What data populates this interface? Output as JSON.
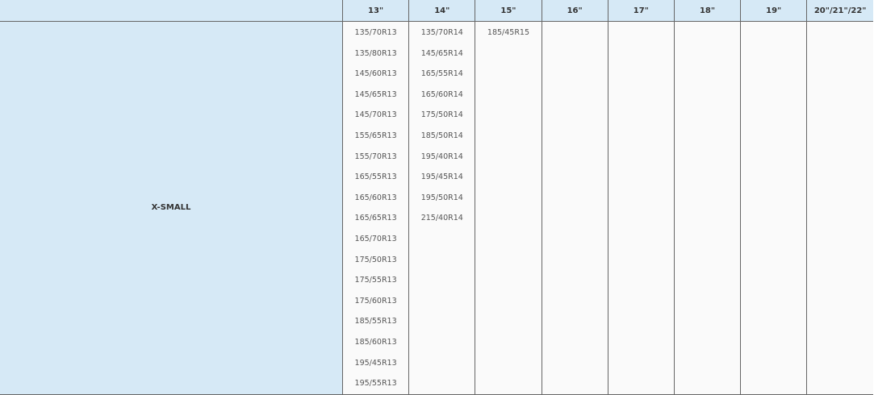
{
  "table": {
    "headers": [
      "",
      "13\"",
      "14\"",
      "15\"",
      "16\"",
      "17\"",
      "18\"",
      "19\"",
      "20\"/21\"/22\""
    ],
    "rows": [
      {
        "category": "X-SMALL",
        "columns": [
          [
            "135/70R13",
            "135/80R13",
            "145/60R13",
            "145/65R13",
            "145/70R13",
            "155/65R13",
            "155/70R13",
            "165/55R13",
            "165/60R13",
            "165/65R13",
            "165/70R13",
            "175/50R13",
            "175/55R13",
            "175/60R13",
            "185/55R13",
            "185/60R13",
            "195/45R13",
            "195/55R13"
          ],
          [
            "135/70R14",
            "145/65R14",
            "165/55R14",
            "165/60R14",
            "175/50R14",
            "185/50R14",
            "195/40R14",
            "195/45R14",
            "195/50R14",
            "215/40R14"
          ],
          [
            "185/45R15"
          ],
          [],
          [],
          [],
          [],
          []
        ]
      }
    ]
  },
  "colors": {
    "header_bg": "#d6e9f6",
    "cell_bg": "#fafafa",
    "border": "#666666"
  }
}
